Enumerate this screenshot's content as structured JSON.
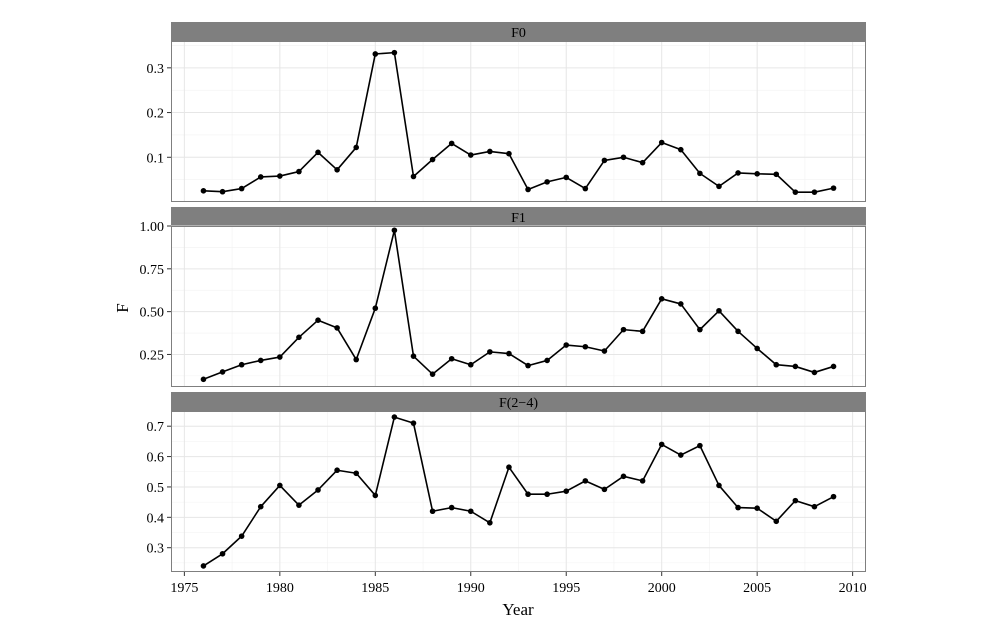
{
  "chart_data": {
    "type": "line",
    "xlabel": "Year",
    "ylabel": "F",
    "grid": true,
    "x_ticks": [
      1975,
      1980,
      1985,
      1990,
      1995,
      2000,
      2005,
      2010
    ],
    "xlim": [
      1974.3,
      2010.7
    ],
    "x": [
      1976,
      1977,
      1978,
      1979,
      1980,
      1981,
      1982,
      1983,
      1984,
      1985,
      1986,
      1987,
      1988,
      1989,
      1990,
      1991,
      1992,
      1993,
      1994,
      1995,
      1996,
      1997,
      1998,
      1999,
      2000,
      2001,
      2002,
      2003,
      2004,
      2005,
      2006,
      2007,
      2008,
      2009
    ],
    "panels": [
      {
        "label": "F0",
        "ylim": [
          0.0,
          0.36
        ],
        "y_ticks": [
          0.1,
          0.2,
          0.3
        ],
        "y_tick_labels": [
          "0.1",
          "0.2",
          "0.3"
        ],
        "values": [
          0.025,
          0.023,
          0.03,
          0.056,
          0.058,
          0.068,
          0.111,
          0.072,
          0.122,
          0.331,
          0.334,
          0.057,
          0.095,
          0.131,
          0.105,
          0.113,
          0.108,
          0.028,
          0.045,
          0.055,
          0.03,
          0.093,
          0.1,
          0.088,
          0.133,
          0.117,
          0.064,
          0.035,
          0.065,
          0.063,
          0.062,
          0.022,
          0.022,
          0.031
        ]
      },
      {
        "label": "F1",
        "ylim": [
          0.06,
          1.0
        ],
        "y_ticks": [
          0.25,
          0.5,
          0.75,
          1.0
        ],
        "y_tick_labels": [
          "0.25",
          "0.50",
          "0.75",
          "1.00"
        ],
        "values": [
          0.105,
          0.148,
          0.19,
          0.215,
          0.235,
          0.35,
          0.45,
          0.405,
          0.22,
          0.52,
          0.975,
          0.24,
          0.135,
          0.225,
          0.19,
          0.265,
          0.255,
          0.185,
          0.215,
          0.305,
          0.295,
          0.27,
          0.395,
          0.385,
          0.575,
          0.545,
          0.395,
          0.505,
          0.385,
          0.285,
          0.19,
          0.18,
          0.145,
          0.18
        ]
      },
      {
        "label": "F(2−4)",
        "ylim": [
          0.22,
          0.75
        ],
        "y_ticks": [
          0.3,
          0.4,
          0.5,
          0.6,
          0.7
        ],
        "y_tick_labels": [
          "0.3",
          "0.4",
          "0.5",
          "0.6",
          "0.7"
        ],
        "values": [
          0.24,
          0.28,
          0.338,
          0.435,
          0.505,
          0.44,
          0.49,
          0.555,
          0.545,
          0.472,
          0.73,
          0.71,
          0.42,
          0.432,
          0.42,
          0.382,
          0.565,
          0.476,
          0.476,
          0.486,
          0.52,
          0.492,
          0.535,
          0.52,
          0.64,
          0.605,
          0.636,
          0.505,
          0.432,
          0.43,
          0.387,
          0.455,
          0.435,
          0.468
        ]
      }
    ]
  }
}
